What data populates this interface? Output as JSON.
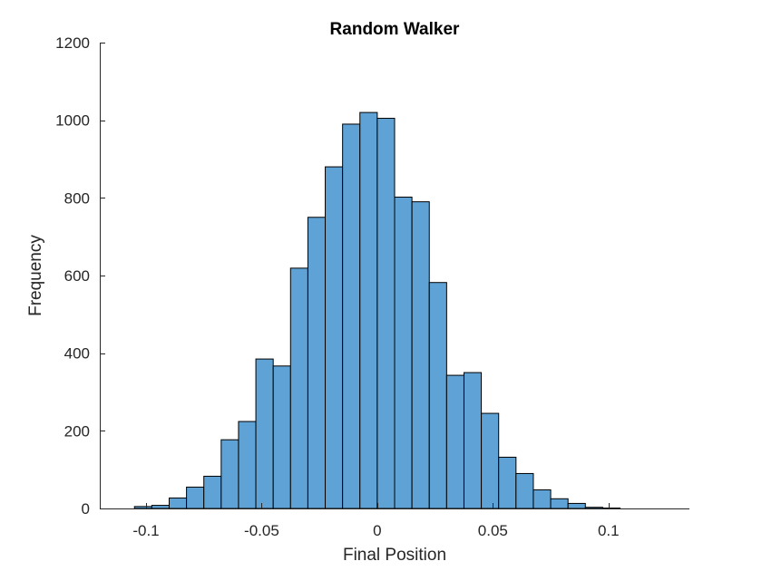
{
  "chart_data": {
    "type": "bar",
    "subtype": "histogram",
    "title": "Random Walker",
    "xlabel": "Final Position",
    "ylabel": "Frequency",
    "xlim": [
      -0.12,
      0.135
    ],
    "ylim": [
      0,
      1200
    ],
    "xticks": [
      -0.1,
      -0.05,
      0,
      0.05,
      0.1
    ],
    "xtick_labels": [
      "-0.1",
      "-0.05",
      "0",
      "0.05",
      "0.1"
    ],
    "yticks": [
      0,
      200,
      400,
      600,
      800,
      1000,
      1200
    ],
    "ytick_labels": [
      "0",
      "200",
      "400",
      "600",
      "800",
      "1000",
      "1200"
    ],
    "bin_edges": [
      -0.105,
      -0.0975,
      -0.09,
      -0.0825,
      -0.075,
      -0.0675,
      -0.06,
      -0.0525,
      -0.045,
      -0.0375,
      -0.03,
      -0.0225,
      -0.015,
      -0.0075,
      0.0,
      0.0075,
      0.015,
      0.0225,
      0.03,
      0.0375,
      0.045,
      0.0525,
      0.06,
      0.0675,
      0.075,
      0.0825,
      0.09,
      0.0975,
      0.105,
      0.1125,
      0.12
    ],
    "values": [
      5,
      8,
      27,
      55,
      83,
      177,
      224,
      385,
      367,
      619,
      750,
      880,
      990,
      1020,
      1005,
      802,
      790,
      582,
      343,
      350,
      245,
      132,
      90,
      48,
      25,
      13,
      3,
      1,
      0,
      0
    ],
    "bar_color": "#5fa2d5",
    "edge_color": "#000000",
    "grid": false,
    "legend": "none"
  }
}
